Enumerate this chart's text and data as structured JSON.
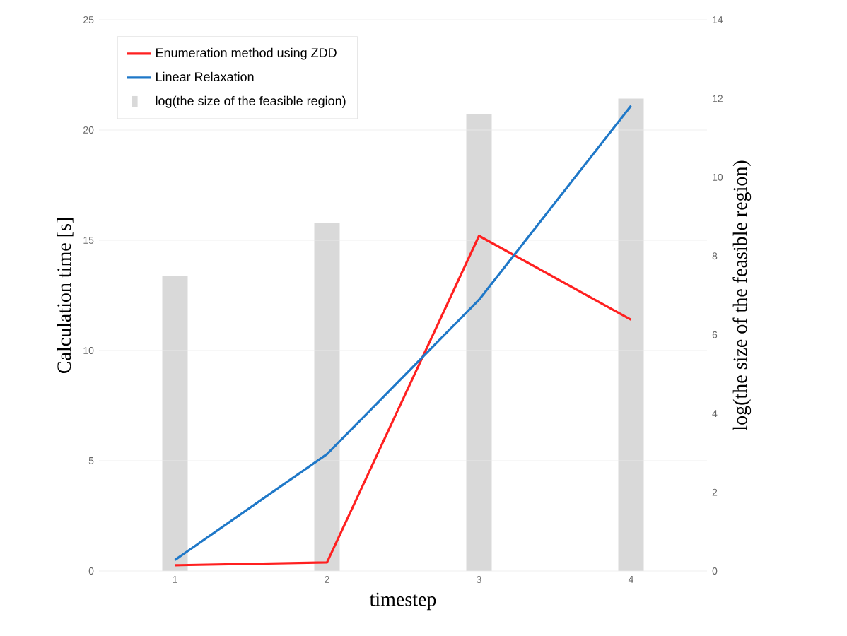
{
  "chart_data": {
    "type": "line",
    "xlabel": "timestep",
    "ylabel": "Calculation time [s]",
    "y2label": "log(the size of the feasible region)",
    "categories": [
      "1",
      "2",
      "3",
      "4"
    ],
    "series": [
      {
        "name": "Enumeration method using ZDD",
        "color": "#ff2020",
        "values": [
          0.26,
          0.39,
          15.2,
          11.4
        ]
      },
      {
        "name": "Linear Relaxation",
        "color": "#1f78c8",
        "values": [
          0.5,
          5.3,
          12.3,
          21.1
        ]
      },
      {
        "name": "log(the size of the feasible region)",
        "type": "bar",
        "axis": "y2",
        "color": "#d9d9d9",
        "values": [
          7.5,
          8.85,
          11.6,
          12.0
        ]
      }
    ],
    "ylim": [
      0,
      25
    ],
    "yticks": [
      0,
      5,
      10,
      15,
      20,
      25
    ],
    "y2lim": [
      0,
      14
    ],
    "y2ticks": [
      0,
      2,
      4,
      6,
      8,
      10,
      12,
      14
    ],
    "grid": "y",
    "legend": "top left",
    "line_style": "solid",
    "marker": "none"
  }
}
